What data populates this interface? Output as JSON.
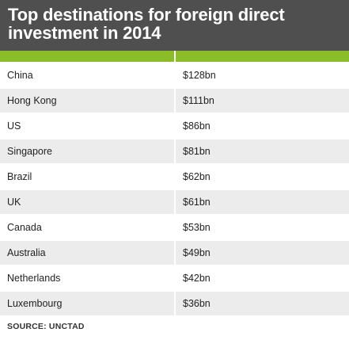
{
  "title": "Top destinations for foreign direct investment in 2014",
  "colors": {
    "header_bg": "#4f4f4f",
    "accent_green": "#8bbd2a",
    "row_alt_bg": "#ececec"
  },
  "chart_data": {
    "type": "table",
    "title": "Top destinations for foreign direct investment in 2014",
    "columns": [
      "",
      ""
    ],
    "rows": [
      {
        "country": "China",
        "value_label": "$128bn",
        "value": 128
      },
      {
        "country": "Hong Kong",
        "value_label": "$111bn",
        "value": 111
      },
      {
        "country": "US",
        "value_label": "$86bn",
        "value": 86
      },
      {
        "country": "Singapore",
        "value_label": "$81bn",
        "value": 81
      },
      {
        "country": "Brazil",
        "value_label": "$62bn",
        "value": 62
      },
      {
        "country": "UK",
        "value_label": "$61bn",
        "value": 61
      },
      {
        "country": "Canada",
        "value_label": "$53bn",
        "value": 53
      },
      {
        "country": "Australia",
        "value_label": "$49bn",
        "value": 49
      },
      {
        "country": "Netherlands",
        "value_label": "$42bn",
        "value": 42
      },
      {
        "country": "Luxembourg",
        "value_label": "$36bn",
        "value": 36
      }
    ],
    "unit": "bn"
  },
  "source": "SOURCE: UNCTAD"
}
